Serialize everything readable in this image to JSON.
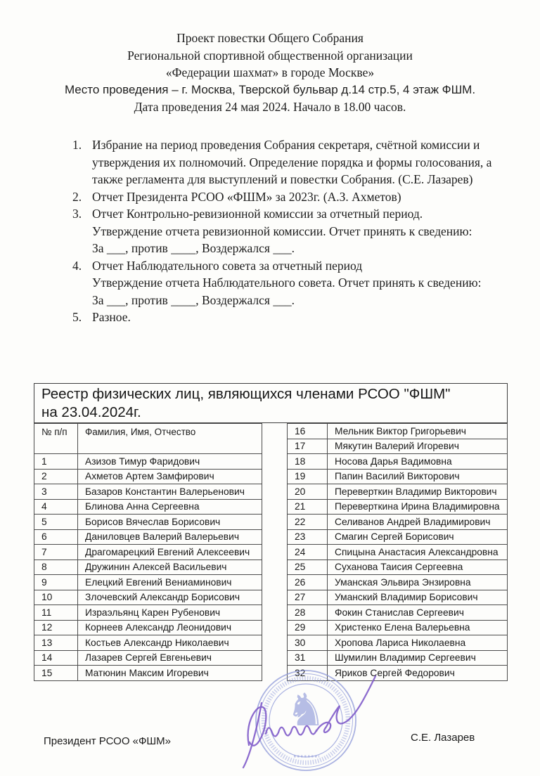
{
  "header": {
    "lines": [
      "Проект повестки Общего Собрания",
      "Региональной спортивной общественной организации",
      "«Федерации шахмат» в городе Москве»",
      "Место проведения – г. Москва, Тверской бульвар д.14 стр.5,  4 этаж ФШМ.",
      "Дата проведения 24 мая 2024.  Начало в 18.00 часов."
    ]
  },
  "agenda": [
    {
      "num": "1.",
      "text": "Избрание на период проведения Собрания секретаря, счётной комиссии и утверждения их полномочий. Определение порядка и формы голосования, а также регламента для выступлений и повестки Собрания. (С.Е. Лазарев)"
    },
    {
      "num": "2.",
      "text": "Отчет Президента РСОО «ФШМ» за 2023г.  (А.З. Ахметов)"
    },
    {
      "num": "3.",
      "text": "Отчет Контрольно-ревизионной комиссии за отчетный период.\nУтверждение отчета ревизионной комиссии. Отчет принять к сведению:\nЗа ___, против ____, Воздержался ___."
    },
    {
      "num": "4.",
      "text": "Отчет Наблюдательного совета за отчетный период\nУтверждение отчета Наблюдательного совета. Отчет принять к сведению:\nЗа ___, против ____, Воздержался ___."
    },
    {
      "num": "5.",
      "text": "Разное."
    }
  ],
  "registry": {
    "title": "Реестр физических лиц, являющихся членами РСОО \"ФШМ\"\nна 23.04.2024г.",
    "columns": {
      "num": "№ п/п",
      "name": "Фамилия, Имя, Отчество"
    },
    "left_rows": [
      {
        "n": "1",
        "name": "Азизов Тимур Фаридович"
      },
      {
        "n": "2",
        "name": "Ахметов Артем Замфирович"
      },
      {
        "n": "3",
        "name": "Базаров Константин Валерьенович"
      },
      {
        "n": "4",
        "name": "Блинова Анна Сергеевна"
      },
      {
        "n": "5",
        "name": "Борисов Вячеслав Борисович"
      },
      {
        "n": "6",
        "name": "Даниловцев Валерий Валерьевич"
      },
      {
        "n": "7",
        "name": "Драгомарецкий Евгений Алексеевич"
      },
      {
        "n": "8",
        "name": "Дружинин Алексей Васильевич"
      },
      {
        "n": "9",
        "name": "Елецкий Евгений Вениаминович"
      },
      {
        "n": "10",
        "name": "Злочевский Александр Борисович"
      },
      {
        "n": "11",
        "name": "Израэльянц Карен Рубенович"
      },
      {
        "n": "12",
        "name": "Корнеев Александр Леонидович"
      },
      {
        "n": "13",
        "name": "Костьев Александр Николаевич"
      },
      {
        "n": "14",
        "name": "Лазарев Сергей Евгеньевич"
      },
      {
        "n": "15",
        "name": "Матюнин Максим Игоревич"
      }
    ],
    "right_rows": [
      {
        "n": "16",
        "name": "Мельник Виктор Григорьевич"
      },
      {
        "n": "17",
        "name": "Мякутин Валерий Игоревич"
      },
      {
        "n": "18",
        "name": "Носова Дарья Вадимовна"
      },
      {
        "n": "19",
        "name": "Папин Василий Викторович"
      },
      {
        "n": "20",
        "name": "Переверткин Владимир Викторович"
      },
      {
        "n": "21",
        "name": "Переверткина Ирина Владимировна"
      },
      {
        "n": "22",
        "name": "Селиванов Андрей Владимирович"
      },
      {
        "n": "23",
        "name": "Смагин Сергей Борисович"
      },
      {
        "n": "24",
        "name": "Спицына Анастасия Александровна"
      },
      {
        "n": "25",
        "name": "Суханова Таисия Сергеевна"
      },
      {
        "n": "26",
        "name": "Уманская Эльвира Энзировна"
      },
      {
        "n": "27",
        "name": "Уманский Владимир Борисович"
      },
      {
        "n": "28",
        "name": "Фокин Станислав Сергеевич"
      },
      {
        "n": "29",
        "name": "Христенко Елена Валерьевна"
      },
      {
        "n": "30",
        "name": "Хропова Лариса Николаевна"
      },
      {
        "n": "31",
        "name": "Шумилин Владимир Сергеевич"
      },
      {
        "n": "32",
        "name": "Яриков Сергей Федорович"
      }
    ]
  },
  "footer": {
    "left_label": "Президент РСОО «ФШМ»",
    "right_label": "С.Е. Лазарев"
  },
  "stamp": {
    "label": "ФШМ",
    "stamp_color": "#8b96d8",
    "signature_color": "#7d58c8"
  }
}
